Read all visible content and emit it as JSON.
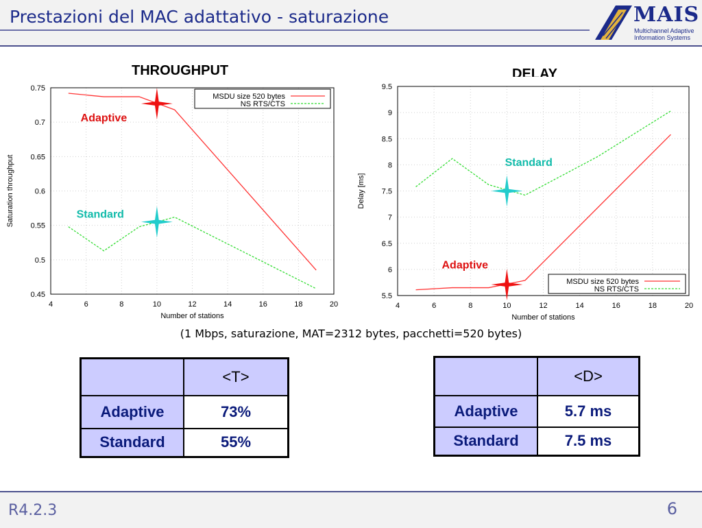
{
  "header": {
    "title": "Prestazioni del MAC adattativo - saturazione",
    "logo_name": "MAIS",
    "logo_sub_1": "Multichannel Adaptive",
    "logo_sub_2": "Information Systems"
  },
  "caption": "(1 Mbps, saturazione, MAT=2312 bytes, pacchetti=520 bytes)",
  "chart_data": [
    {
      "type": "line",
      "title": "THROUGHPUT",
      "xlabel": "Number of stations",
      "ylabel": "Saturation throughput",
      "xlim": [
        4,
        20
      ],
      "ylim": [
        0.45,
        0.75
      ],
      "xticks": [
        4,
        6,
        8,
        10,
        12,
        14,
        16,
        18,
        20
      ],
      "yticks": [
        0.45,
        0.5,
        0.55,
        0.6,
        0.65,
        0.7,
        0.75
      ],
      "grid": true,
      "legend": "top-right",
      "series": [
        {
          "name": "MSDU size 520 bytes",
          "color": "#ff3333",
          "style": "solid",
          "x": [
            5,
            7,
            9,
            11,
            19
          ],
          "y": [
            0.742,
            0.737,
            0.737,
            0.718,
            0.485
          ]
        },
        {
          "name": "NS RTS/CTS",
          "color": "#33dd33",
          "style": "dashed",
          "x": [
            5,
            7,
            9,
            11,
            19
          ],
          "y": [
            0.548,
            0.513,
            0.548,
            0.562,
            0.458
          ]
        }
      ],
      "annotations": [
        {
          "text": "Adaptive",
          "color": "#dd1111",
          "x": 7.0,
          "y": 0.701
        },
        {
          "text": "Standard",
          "color": "#11bbaa",
          "x": 6.8,
          "y": 0.561
        }
      ],
      "stars": [
        {
          "color": "#ee1111",
          "x": 10.0,
          "y": 0.727
        },
        {
          "color": "#22cccc",
          "x": 10.0,
          "y": 0.555
        }
      ]
    },
    {
      "type": "line",
      "title": "DELAY",
      "xlabel": "Number of stations",
      "ylabel": "Delay [ms]",
      "xlim": [
        4,
        20
      ],
      "ylim": [
        5.5,
        9.5
      ],
      "xticks": [
        4,
        6,
        8,
        10,
        12,
        14,
        16,
        18,
        20
      ],
      "yticks": [
        5.5,
        6,
        6.5,
        7,
        7.5,
        8,
        8.5,
        9,
        9.5
      ],
      "grid": true,
      "legend": "bottom-right",
      "series": [
        {
          "name": "MSDU size 520 bytes",
          "color": "#ff3333",
          "style": "solid",
          "x": [
            5,
            7,
            9,
            11,
            19
          ],
          "y": [
            5.61,
            5.65,
            5.65,
            5.79,
            8.58
          ]
        },
        {
          "name": "NS RTS/CTS",
          "color": "#33dd33",
          "style": "dashed",
          "x": [
            5,
            7,
            9,
            11,
            15,
            19
          ],
          "y": [
            7.58,
            8.12,
            7.62,
            7.42,
            8.16,
            9.03
          ]
        }
      ],
      "annotations": [
        {
          "text": "Standard",
          "color": "#11bbaa",
          "x": 11.2,
          "y": 7.98
        },
        {
          "text": "Adaptive",
          "color": "#dd1111",
          "x": 7.7,
          "y": 6.02
        }
      ],
      "stars": [
        {
          "color": "#22cccc",
          "x": 10.0,
          "y": 7.5
        },
        {
          "color": "#ee1111",
          "x": 10.0,
          "y": 5.71
        }
      ]
    }
  ],
  "tables": {
    "throughput": {
      "header": "<T>",
      "rows": [
        {
          "label": "Adaptive",
          "value": "73%"
        },
        {
          "label": "Standard",
          "value": "55%"
        }
      ]
    },
    "delay": {
      "header": "<D>",
      "rows": [
        {
          "label": "Adaptive",
          "value": "5.7 ms"
        },
        {
          "label": "Standard",
          "value": "7.5 ms"
        }
      ]
    }
  },
  "footer": {
    "code": "R4.2.3",
    "page": "6"
  }
}
